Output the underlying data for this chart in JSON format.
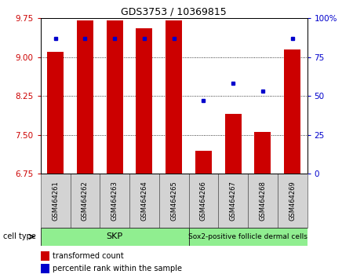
{
  "title": "GDS3753 / 10369815",
  "samples": [
    "GSM464261",
    "GSM464262",
    "GSM464263",
    "GSM464264",
    "GSM464265",
    "GSM464266",
    "GSM464267",
    "GSM464268",
    "GSM464269"
  ],
  "bar_heights": [
    9.1,
    9.7,
    9.7,
    9.55,
    9.7,
    7.2,
    7.9,
    7.55,
    9.15
  ],
  "percentile_ranks": [
    87,
    87,
    87,
    87,
    87,
    47,
    58,
    53,
    87
  ],
  "bar_color": "#cc0000",
  "dot_color": "#0000cc",
  "ylim_left": [
    6.75,
    9.75
  ],
  "ylim_right": [
    0,
    100
  ],
  "yticks_left": [
    6.75,
    7.5,
    8.25,
    9.0,
    9.75
  ],
  "yticks_right": [
    0,
    25,
    50,
    75,
    100
  ],
  "skp_label": "SKP",
  "sox2_label": "Sox2-positive follicle dermal cells",
  "skp_samples": [
    0,
    1,
    2,
    3,
    4
  ],
  "sox2_samples": [
    5,
    6,
    7,
    8
  ],
  "group_color": "#90ee90",
  "sample_box_color": "#d3d3d3",
  "legend_red_label": "transformed count",
  "legend_blue_label": "percentile rank within the sample",
  "cell_type_label": "cell type",
  "background_color": "#ffffff",
  "bar_baseline": 6.75
}
